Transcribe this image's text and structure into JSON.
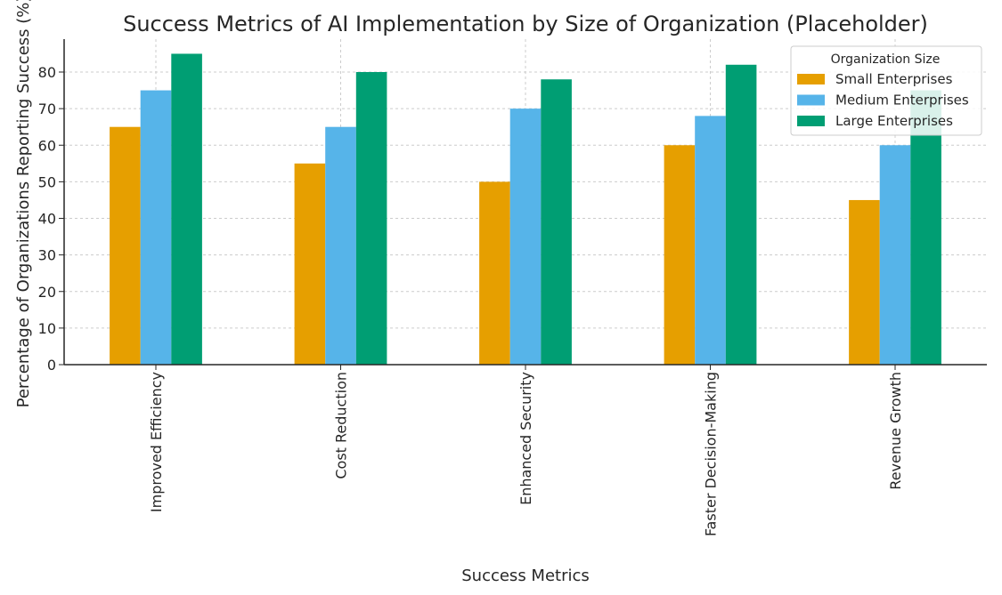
{
  "chart_data": {
    "type": "bar",
    "title": "Success Metrics of AI Implementation by Size of Organization (Placeholder)",
    "xlabel": "Success Metrics",
    "ylabel": "Percentage of Organizations Reporting Success (%)",
    "ylim": [
      0,
      89
    ],
    "yticks": [
      0,
      10,
      20,
      30,
      40,
      50,
      60,
      70,
      80
    ],
    "grid": true,
    "categories": [
      "Improved Efficiency",
      "Cost Reduction",
      "Enhanced Security",
      "Faster Decision-Making",
      "Revenue Growth"
    ],
    "series": [
      {
        "name": "Small Enterprises",
        "color": "#E69F00",
        "values": [
          65,
          55,
          50,
          60,
          45
        ]
      },
      {
        "name": "Medium Enterprises",
        "color": "#56B4E9",
        "values": [
          75,
          65,
          70,
          68,
          60
        ]
      },
      {
        "name": "Large Enterprises",
        "color": "#009E73",
        "values": [
          85,
          80,
          78,
          82,
          75
        ]
      }
    ],
    "legend": {
      "title": "Organization Size",
      "position": "top-right"
    }
  }
}
